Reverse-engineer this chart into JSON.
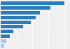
{
  "values": [
    100,
    78,
    62,
    55,
    47,
    35,
    20,
    14,
    9,
    6
  ],
  "bar_colors": [
    "#2b7bba",
    "#2b7bba",
    "#2b7bba",
    "#2b7bba",
    "#2b7bba",
    "#2b7bba",
    "#2b7bba",
    "#2b7bba",
    "#a8c8e8",
    "#a8c8e8"
  ],
  "background_color": "#f0f0f0",
  "grid_color": "#ffffff",
  "bar_height": 0.75,
  "xlim": [
    0,
    108
  ],
  "figsize": [
    1.0,
    0.71
  ],
  "dpi": 100
}
